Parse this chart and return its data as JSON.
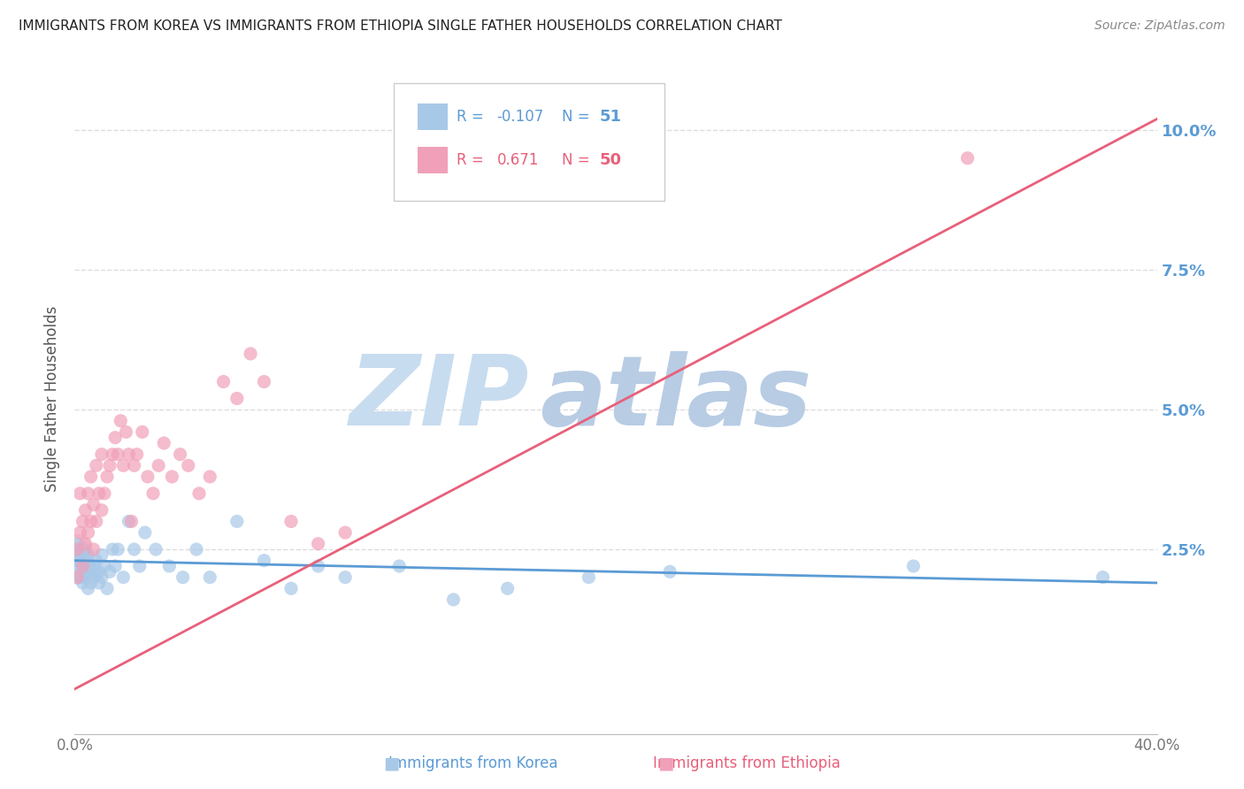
{
  "title": "IMMIGRANTS FROM KOREA VS IMMIGRANTS FROM ETHIOPIA SINGLE FATHER HOUSEHOLDS CORRELATION CHART",
  "source": "Source: ZipAtlas.com",
  "xlabel_bottom": [
    "Immigrants from Korea",
    "Immigrants from Ethiopia"
  ],
  "ylabel": "Single Father Households",
  "xlim": [
    0.0,
    0.4
  ],
  "ylim": [
    -0.008,
    0.112
  ],
  "yticks": [
    0.025,
    0.05,
    0.075,
    0.1
  ],
  "ytick_labels": [
    "2.5%",
    "5.0%",
    "7.5%",
    "10.0%"
  ],
  "xticks": [
    0.0,
    0.1,
    0.2,
    0.3,
    0.4
  ],
  "xtick_labels": [
    "0.0%",
    "",
    "",
    "",
    "40.0%"
  ],
  "korea_color": "#A8C8E8",
  "ethiopia_color": "#F0A0B8",
  "korea_R": -0.107,
  "korea_N": 51,
  "ethiopia_R": 0.671,
  "ethiopia_N": 50,
  "korea_line_color": "#5B9BD5",
  "ethiopia_line_color": "#E8607A",
  "watermark": "ZIPatlas",
  "watermark_color_zip": "#C0D8F0",
  "watermark_color_atlas": "#A8C8E8",
  "background_color": "#FFFFFF",
  "grid_color": "#DDDDDD",
  "title_color": "#222222",
  "axis_label_color": "#555555",
  "tick_color": "#777777",
  "korea_line_start_y": 0.023,
  "korea_line_end_y": 0.019,
  "ethiopia_line_start_y": 0.0,
  "ethiopia_line_end_y": 0.102,
  "korea_scatter_x": [
    0.001,
    0.001,
    0.002,
    0.002,
    0.003,
    0.003,
    0.003,
    0.004,
    0.004,
    0.005,
    0.005,
    0.005,
    0.006,
    0.006,
    0.007,
    0.007,
    0.008,
    0.008,
    0.009,
    0.009,
    0.01,
    0.01,
    0.011,
    0.012,
    0.013,
    0.014,
    0.015,
    0.016,
    0.018,
    0.02,
    0.022,
    0.024,
    0.026,
    0.03,
    0.035,
    0.04,
    0.045,
    0.05,
    0.06,
    0.07,
    0.08,
    0.09,
    0.1,
    0.12,
    0.14,
    0.16,
    0.19,
    0.22,
    0.31,
    0.38,
    0.001
  ],
  "korea_scatter_y": [
    0.023,
    0.022,
    0.024,
    0.02,
    0.025,
    0.021,
    0.019,
    0.023,
    0.02,
    0.022,
    0.018,
    0.024,
    0.021,
    0.019,
    0.022,
    0.02,
    0.021,
    0.023,
    0.019,
    0.021,
    0.02,
    0.024,
    0.022,
    0.018,
    0.021,
    0.025,
    0.022,
    0.025,
    0.02,
    0.03,
    0.025,
    0.022,
    0.028,
    0.025,
    0.022,
    0.02,
    0.025,
    0.02,
    0.03,
    0.023,
    0.018,
    0.022,
    0.02,
    0.022,
    0.016,
    0.018,
    0.02,
    0.021,
    0.022,
    0.02,
    0.026
  ],
  "ethiopia_scatter_x": [
    0.001,
    0.001,
    0.002,
    0.002,
    0.003,
    0.003,
    0.004,
    0.004,
    0.005,
    0.005,
    0.006,
    0.006,
    0.007,
    0.007,
    0.008,
    0.008,
    0.009,
    0.01,
    0.01,
    0.011,
    0.012,
    0.013,
    0.014,
    0.015,
    0.016,
    0.017,
    0.018,
    0.019,
    0.02,
    0.021,
    0.022,
    0.023,
    0.025,
    0.027,
    0.029,
    0.031,
    0.033,
    0.036,
    0.039,
    0.042,
    0.046,
    0.05,
    0.055,
    0.06,
    0.065,
    0.07,
    0.08,
    0.09,
    0.1,
    0.33
  ],
  "ethiopia_scatter_y": [
    0.02,
    0.025,
    0.028,
    0.035,
    0.022,
    0.03,
    0.026,
    0.032,
    0.028,
    0.035,
    0.03,
    0.038,
    0.025,
    0.033,
    0.03,
    0.04,
    0.035,
    0.032,
    0.042,
    0.035,
    0.038,
    0.04,
    0.042,
    0.045,
    0.042,
    0.048,
    0.04,
    0.046,
    0.042,
    0.03,
    0.04,
    0.042,
    0.046,
    0.038,
    0.035,
    0.04,
    0.044,
    0.038,
    0.042,
    0.04,
    0.035,
    0.038,
    0.055,
    0.052,
    0.06,
    0.055,
    0.03,
    0.026,
    0.028,
    0.095
  ]
}
